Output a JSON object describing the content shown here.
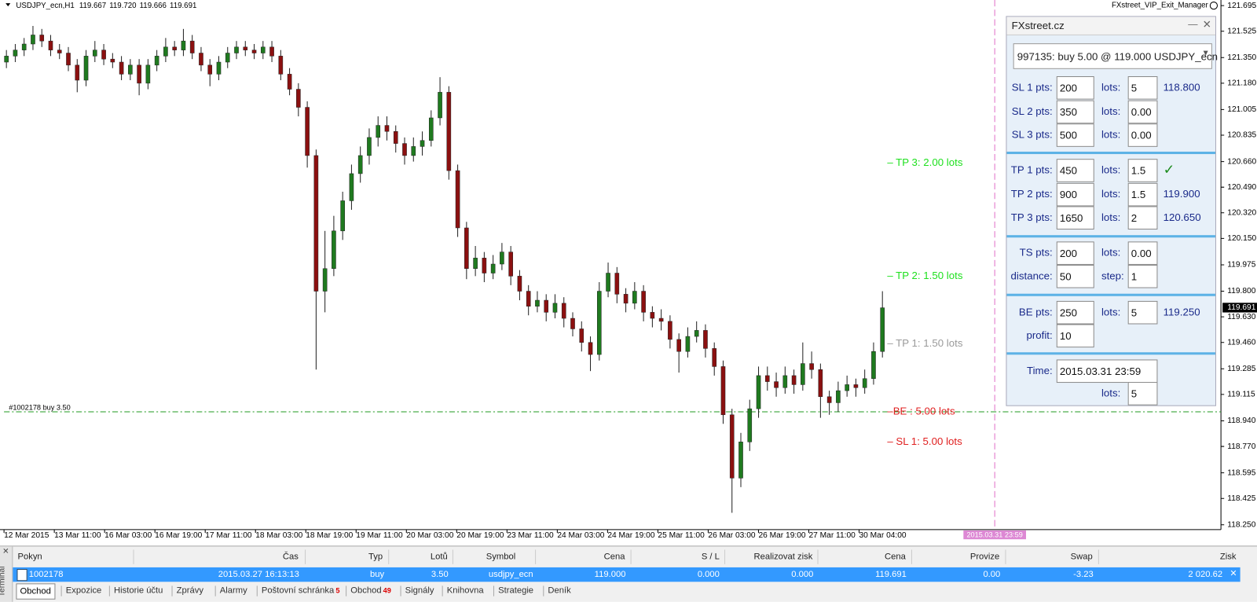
{
  "chart_data": {
    "type": "candlestick",
    "symbol": "USDJPY_ecn,H1",
    "header_ohlc": [
      "119.667",
      "119.720",
      "119.666",
      "119.691"
    ],
    "indicator": "FXstreet_VIP_Exit_Manager",
    "up_color": "#1f7a1f",
    "down_color": "#8b1010",
    "candles": [
      [
        121.32,
        121.4,
        121.28,
        121.36
      ],
      [
        121.36,
        121.44,
        121.32,
        121.4
      ],
      [
        121.4,
        121.48,
        121.36,
        121.44
      ],
      [
        121.44,
        121.56,
        121.4,
        121.5
      ],
      [
        121.5,
        121.54,
        121.42,
        121.46
      ],
      [
        121.46,
        121.5,
        121.36,
        121.4
      ],
      [
        121.4,
        121.44,
        121.34,
        121.38
      ],
      [
        121.38,
        121.42,
        121.26,
        121.3
      ],
      [
        121.3,
        121.34,
        121.12,
        121.2
      ],
      [
        121.2,
        121.4,
        121.16,
        121.36
      ],
      [
        121.36,
        121.46,
        121.32,
        121.4
      ],
      [
        121.4,
        121.44,
        121.3,
        121.34
      ],
      [
        121.34,
        121.38,
        121.28,
        121.32
      ],
      [
        121.32,
        121.36,
        121.2,
        121.24
      ],
      [
        121.24,
        121.34,
        121.2,
        121.3
      ],
      [
        121.3,
        121.34,
        121.1,
        121.18
      ],
      [
        121.18,
        121.34,
        121.14,
        121.3
      ],
      [
        121.3,
        121.4,
        121.26,
        121.36
      ],
      [
        121.36,
        121.48,
        121.32,
        121.42
      ],
      [
        121.42,
        121.46,
        121.36,
        121.4
      ],
      [
        121.4,
        121.54,
        121.36,
        121.46
      ],
      [
        121.46,
        121.5,
        121.34,
        121.38
      ],
      [
        121.38,
        121.42,
        121.26,
        121.3
      ],
      [
        121.3,
        121.34,
        121.16,
        121.24
      ],
      [
        121.24,
        121.36,
        121.2,
        121.32
      ],
      [
        121.32,
        121.42,
        121.28,
        121.38
      ],
      [
        121.38,
        121.46,
        121.34,
        121.42
      ],
      [
        121.42,
        121.46,
        121.36,
        121.4
      ],
      [
        121.4,
        121.44,
        121.34,
        121.38
      ],
      [
        121.38,
        121.46,
        121.34,
        121.42
      ],
      [
        121.42,
        121.46,
        121.32,
        121.36
      ],
      [
        121.36,
        121.4,
        121.2,
        121.24
      ],
      [
        121.24,
        121.28,
        121.1,
        121.14
      ],
      [
        121.14,
        121.18,
        120.96,
        121.02
      ],
      [
        121.02,
        121.06,
        120.62,
        120.7
      ],
      [
        120.7,
        120.74,
        119.28,
        119.8
      ],
      [
        119.8,
        120.2,
        119.66,
        119.95
      ],
      [
        119.95,
        120.3,
        119.9,
        120.2
      ],
      [
        120.2,
        120.46,
        120.14,
        120.4
      ],
      [
        120.4,
        120.64,
        120.34,
        120.58
      ],
      [
        120.58,
        120.76,
        120.52,
        120.7
      ],
      [
        120.7,
        120.88,
        120.64,
        120.82
      ],
      [
        120.82,
        120.96,
        120.76,
        120.9
      ],
      [
        120.9,
        120.96,
        120.8,
        120.86
      ],
      [
        120.86,
        120.9,
        120.72,
        120.78
      ],
      [
        120.78,
        120.82,
        120.64,
        120.7
      ],
      [
        120.7,
        120.82,
        120.66,
        120.76
      ],
      [
        120.76,
        120.86,
        120.7,
        120.8
      ],
      [
        120.8,
        121.0,
        120.76,
        120.95
      ],
      [
        120.95,
        121.22,
        120.9,
        121.12
      ],
      [
        121.12,
        121.16,
        120.54,
        120.6
      ],
      [
        120.6,
        120.64,
        120.16,
        120.22
      ],
      [
        120.22,
        120.26,
        119.88,
        119.95
      ],
      [
        119.95,
        120.1,
        119.9,
        120.02
      ],
      [
        120.02,
        120.06,
        119.86,
        119.92
      ],
      [
        119.92,
        120.04,
        119.88,
        119.98
      ],
      [
        119.98,
        120.12,
        119.94,
        120.06
      ],
      [
        120.06,
        120.1,
        119.84,
        119.9
      ],
      [
        119.9,
        119.94,
        119.74,
        119.8
      ],
      [
        119.8,
        119.84,
        119.64,
        119.7
      ],
      [
        119.7,
        119.8,
        119.66,
        119.74
      ],
      [
        119.74,
        119.78,
        119.6,
        119.66
      ],
      [
        119.66,
        119.78,
        119.62,
        119.72
      ],
      [
        119.72,
        119.76,
        119.56,
        119.62
      ],
      [
        119.62,
        119.66,
        119.5,
        119.55
      ],
      [
        119.55,
        119.6,
        119.4,
        119.46
      ],
      [
        119.46,
        119.5,
        119.27,
        119.38
      ],
      [
        119.38,
        119.86,
        119.34,
        119.8
      ],
      [
        119.8,
        119.99,
        119.76,
        119.92
      ],
      [
        119.92,
        119.96,
        119.72,
        119.78
      ],
      [
        119.78,
        119.82,
        119.66,
        119.72
      ],
      [
        119.72,
        119.86,
        119.68,
        119.8
      ],
      [
        119.8,
        119.84,
        119.6,
        119.66
      ],
      [
        119.66,
        119.7,
        119.56,
        119.62
      ],
      [
        119.62,
        119.68,
        119.54,
        119.6
      ],
      [
        119.6,
        119.64,
        119.42,
        119.48
      ],
      [
        119.48,
        119.52,
        119.26,
        119.4
      ],
      [
        119.4,
        119.56,
        119.36,
        119.5
      ],
      [
        119.5,
        119.6,
        119.46,
        119.54
      ],
      [
        119.54,
        119.58,
        119.36,
        119.42
      ],
      [
        119.42,
        119.46,
        119.24,
        119.3
      ],
      [
        119.3,
        119.34,
        118.92,
        118.98
      ],
      [
        118.98,
        119.02,
        118.33,
        118.56
      ],
      [
        118.56,
        118.86,
        118.5,
        118.8
      ],
      [
        118.8,
        119.08,
        118.74,
        119.02
      ],
      [
        119.02,
        119.3,
        118.96,
        119.24
      ],
      [
        119.24,
        119.3,
        119.14,
        119.2
      ],
      [
        119.2,
        119.26,
        119.1,
        119.16
      ],
      [
        119.16,
        119.3,
        119.12,
        119.24
      ],
      [
        119.24,
        119.28,
        119.12,
        119.18
      ],
      [
        119.18,
        119.46,
        119.14,
        119.32
      ],
      [
        119.32,
        119.4,
        119.22,
        119.28
      ],
      [
        119.28,
        119.32,
        118.96,
        119.1
      ],
      [
        119.1,
        119.14,
        118.98,
        119.06
      ],
      [
        119.06,
        119.2,
        119.0,
        119.14
      ],
      [
        119.14,
        119.24,
        119.1,
        119.18
      ],
      [
        119.18,
        119.22,
        119.1,
        119.16
      ],
      [
        119.16,
        119.28,
        119.12,
        119.22
      ],
      [
        119.22,
        119.46,
        119.18,
        119.4
      ],
      [
        119.4,
        119.8,
        119.36,
        119.69
      ]
    ],
    "categories": [
      "12 Mar 2015",
      "13 Mar 11:00",
      "16 Mar 03:00",
      "16 Mar 19:00",
      "17 Mar 11:00",
      "18 Mar 03:00",
      "18 Mar 19:00",
      "19 Mar 11:00",
      "20 Mar 03:00",
      "20 Mar 19:00",
      "23 Mar 11:00",
      "24 Mar 03:00",
      "24 Mar 19:00",
      "25 Mar 11:00",
      "26 Mar 03:00",
      "26 Mar 19:00",
      "27 Mar 11:00",
      "30 Mar 04:00"
    ],
    "ylim": [
      118.218,
      121.732
    ],
    "yticks": [
      121.695,
      121.525,
      {
        "value": 121.35,
        "label": "121.350"
      },
      {
        "value": 121.18,
        "label": "121.180"
      },
      121.005,
      120.835,
      {
        "value": 120.66,
        "label": "120.660"
      },
      {
        "value": 120.49,
        "label": "120.490"
      },
      {
        "value": 120.32,
        "label": "120.320"
      },
      {
        "value": 120.15,
        "label": "120.150"
      },
      119.975,
      {
        "value": 119.8,
        "label": "119.800"
      },
      {
        "value": 119.63,
        "label": "119.630"
      },
      {
        "value": 119.46,
        "label": "119.460"
      },
      119.285,
      119.115,
      {
        "value": 118.94,
        "label": "118.940"
      },
      {
        "value": 118.77,
        "label": "118.770"
      },
      118.595,
      118.425,
      {
        "value": 118.25,
        "label": "118.250"
      }
    ],
    "current_price": 119.691,
    "order_line": {
      "value": 119,
      "label": "#1002178 buy 3.50",
      "color": "#1f9a1f"
    },
    "levels": [
      {
        "label": "– TP 3: 2.00 lots",
        "value": 120.65,
        "color": "#1ee01e"
      },
      {
        "label": "– TP 2: 1.50 lots",
        "value": 119.9,
        "color": "#1ee01e"
      },
      {
        "label": "– TP 1: 1.50 lots",
        "value": 119.45,
        "color": "#9a9a9a"
      },
      {
        "label": "–BE : 5.00 lots",
        "value": 119,
        "color": "#e02020"
      },
      {
        "label": "– SL 1: 5.00 lots",
        "value": 118.8,
        "color": "#e02020"
      }
    ],
    "time_marker": "2015.03.31 23:59"
  },
  "panel": {
    "title": "FXstreet.cz",
    "order": "997135: buy 5.00 @ 119.000 USDJPY_ecn",
    "rows": [
      {
        "label": "SL 1 pts:",
        "pts": "200",
        "lots_label": "lots:",
        "lots": "5",
        "price": "118.800"
      },
      {
        "label": "SL 2 pts:",
        "pts": "350",
        "lots_label": "lots:",
        "lots": "0.00"
      },
      {
        "label": "SL 3 pts:",
        "pts": "500",
        "lots_label": "lots:",
        "lots": "0.00"
      },
      {
        "label": "TP 1 pts:",
        "pts": "450",
        "lots_label": "lots:",
        "lots": "1.5",
        "mark": "✓"
      },
      {
        "label": "TP 2 pts:",
        "pts": "900",
        "lots_label": "lots:",
        "lots": "1.5",
        "price": "119.900"
      },
      {
        "label": "TP 3 pts:",
        "pts": "1650",
        "lots_label": "lots:",
        "lots": "2",
        "price": "120.650"
      },
      {
        "label": "TS pts:",
        "pts": "200",
        "lots_label": "lots:",
        "lots": "0.00"
      },
      {
        "label": "distance:",
        "pts": "50",
        "lots_label": "step:",
        "lots": "1"
      },
      {
        "label": "BE pts:",
        "pts": "250",
        "lots_label": "lots:",
        "lots": "5",
        "price": "119.250"
      },
      {
        "label": "profit:",
        "pts": "10"
      },
      {
        "label": "Time:",
        "pts": "2015.03.31 23:59"
      },
      {
        "lots_label": "lots:",
        "lots": "5"
      }
    ]
  },
  "terminal": {
    "side_label": "Terminál",
    "columns": [
      "Pokyn",
      "Čas",
      "Typ",
      "Lotů",
      "Symbol",
      "Cena",
      "S / L",
      "Realizovat zisk",
      "Cena",
      "Provize",
      "Swap",
      "Zisk"
    ],
    "rows": [
      [
        "1002178",
        "2015.03.27 16:13:13",
        "buy",
        "3.50",
        "usdjpy_ecn",
        "119.000",
        "0.000",
        "0.000",
        "119.691",
        "0.00",
        "-3.23",
        "2 020.62"
      ]
    ],
    "tabs": [
      {
        "label": "Obchod"
      },
      {
        "label": "Expozice"
      },
      {
        "label": "Historie účtu"
      },
      {
        "label": "Zprávy"
      },
      {
        "label": "Alarmy"
      },
      {
        "label": "Poštovní schránka",
        "badge": "5"
      },
      {
        "label": "Obchod",
        "badge": "49"
      },
      {
        "label": "Signály"
      },
      {
        "label": "Knihovna"
      },
      {
        "label": "Strategie"
      },
      {
        "label": "Deník"
      }
    ]
  }
}
